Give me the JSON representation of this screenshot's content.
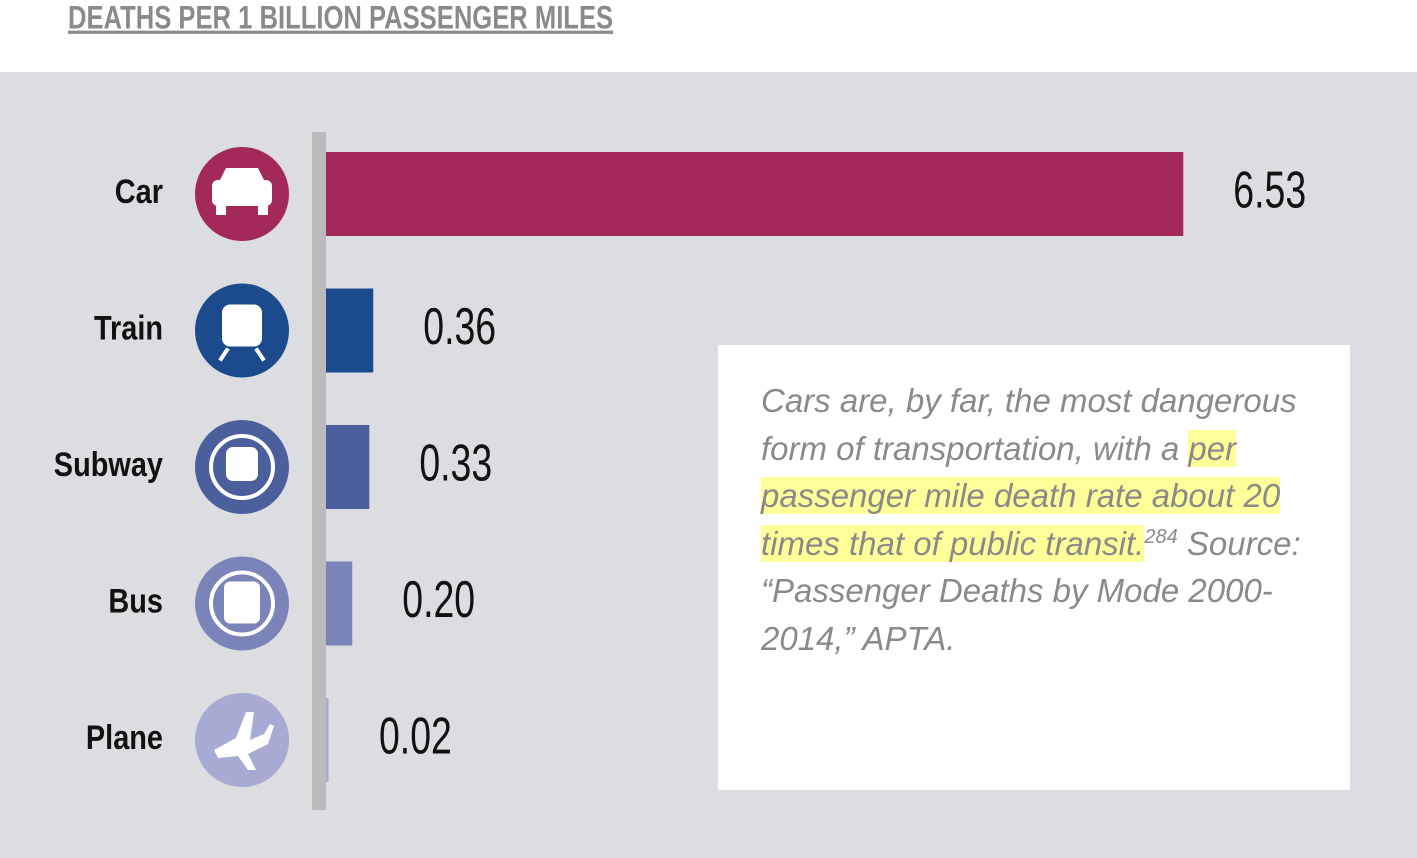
{
  "chart_data": {
    "type": "hbar",
    "title": "DEATHS PER 1 BILLION PASSENGER MILES",
    "categories": [
      "Car",
      "Train",
      "Subway",
      "Bus",
      "Plane"
    ],
    "values": [
      6.53,
      0.36,
      0.33,
      0.2,
      0.02
    ],
    "value_labels": [
      "6.53",
      "0.36",
      "0.33",
      "0.20",
      "0.02"
    ],
    "colors": [
      "#a3295b",
      "#1b4b8c",
      "#4a5f9c",
      "#7a84b9",
      "#a7abd3"
    ],
    "xlim": [
      0,
      7
    ],
    "annotation": {
      "text_before": "Cars are, by far, the most dangerous form of transportation, with a",
      "highlight": "per passenger mile death rate about 20 times that of public transit.",
      "footnote": "284",
      "text_after": "Source: “Passenger Deaths by Mode 2000-2014,” APTA."
    }
  }
}
